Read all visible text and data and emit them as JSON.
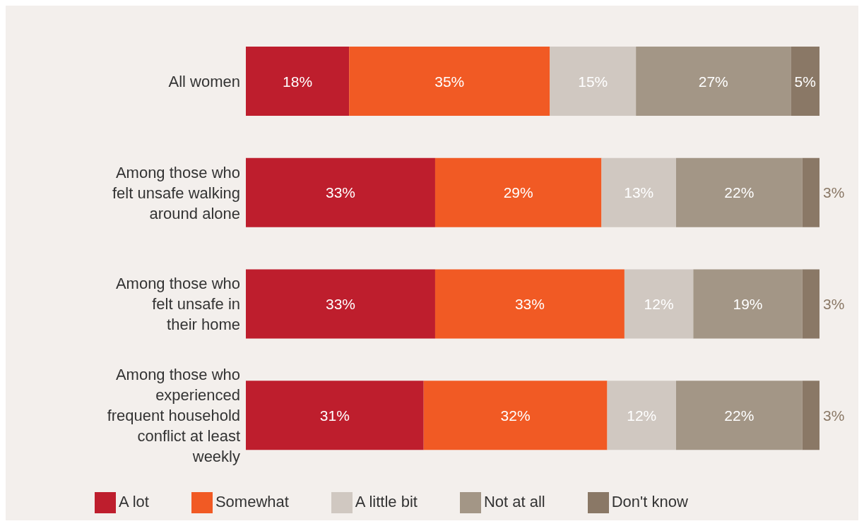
{
  "chart_data": {
    "type": "bar",
    "orientation": "horizontal",
    "stacked": true,
    "legend": "bottom",
    "categories": [
      "All women",
      "Among those who felt unsafe walking around alone",
      "Among those who felt unsafe in their home",
      "Among those who experienced frequent household conflict at least weekly"
    ],
    "series": [
      {
        "name": "A lot",
        "color": "#be1e2d",
        "values": [
          18,
          33,
          33,
          31
        ],
        "value_labels": [
          "18%",
          "33%",
          "33%",
          "31%"
        ]
      },
      {
        "name": "Somewhat",
        "color": "#f15a24",
        "values": [
          35,
          29,
          33,
          32
        ],
        "value_labels": [
          "35%",
          "29%",
          "33%",
          "32%"
        ]
      },
      {
        "name": "A little bit",
        "color": "#d0c8c1",
        "values": [
          15,
          13,
          12,
          12
        ],
        "value_labels": [
          "15%",
          "13%",
          "12%",
          "12%"
        ]
      },
      {
        "name": "Not at all",
        "color": "#a39686",
        "values": [
          27,
          22,
          19,
          22
        ],
        "value_labels": [
          "27%",
          "22%",
          "19%",
          "22%"
        ]
      },
      {
        "name": "Don't know",
        "color": "#8a7866",
        "values": [
          5,
          3,
          3,
          3
        ],
        "value_labels": [
          "5%",
          "3%",
          "3%",
          "3%"
        ]
      }
    ]
  }
}
